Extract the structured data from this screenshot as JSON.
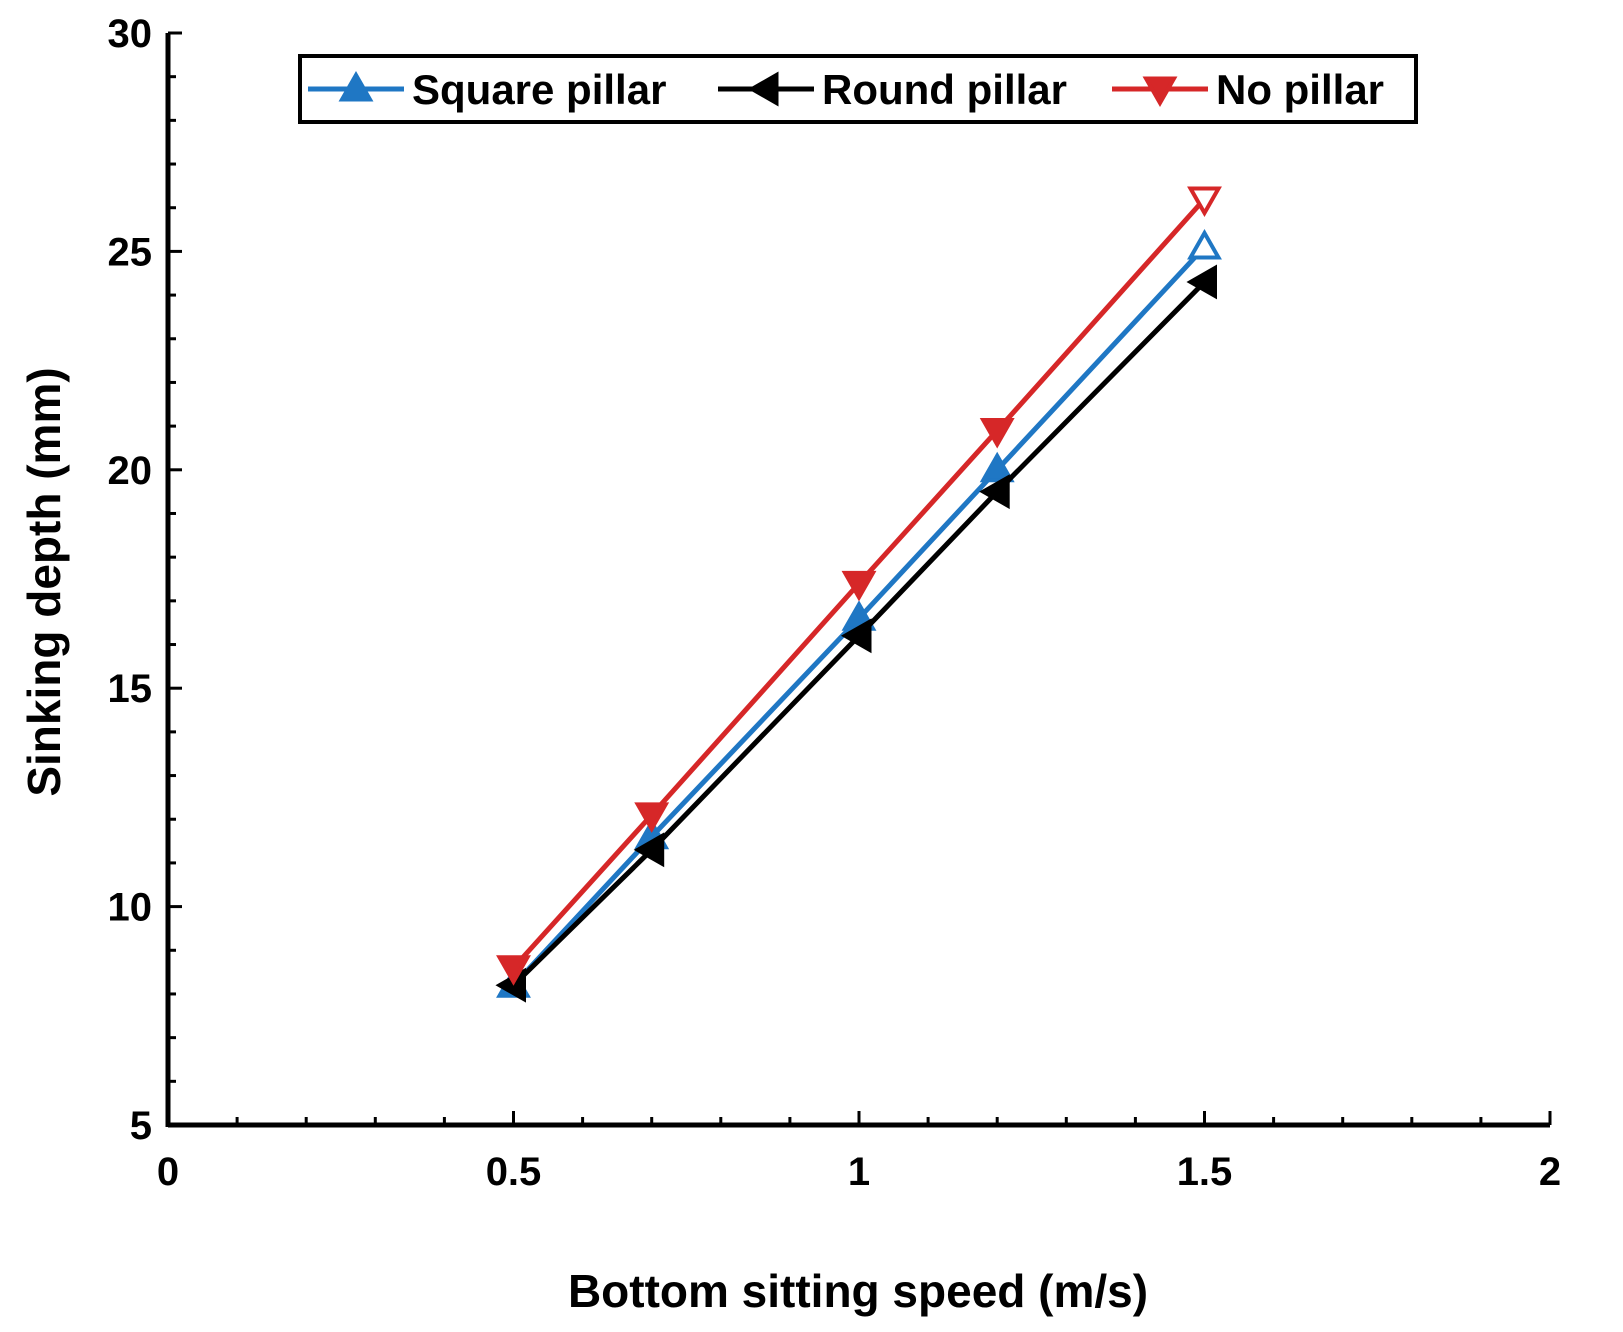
{
  "chart_data": {
    "type": "line",
    "title": "",
    "xlabel": "Bottom sitting speed (m/s)",
    "ylabel": "Sinking depth (mm)",
    "xlim": [
      0,
      2
    ],
    "ylim": [
      5,
      30
    ],
    "xticks": [
      0,
      0.5,
      1,
      1.5,
      2
    ],
    "xtick_labels": [
      "0",
      "0.5",
      "1",
      "1.5",
      "2"
    ],
    "yticks": [
      5,
      10,
      15,
      20,
      25,
      30
    ],
    "ytick_labels": [
      "5",
      "10",
      "15",
      "20",
      "25",
      "30"
    ],
    "grid": false,
    "legend_position": "top",
    "x": [
      0.5,
      0.7,
      1.0,
      1.2,
      1.5
    ],
    "series": [
      {
        "name": "Square pillar",
        "color": "#1f77c4",
        "marker": "triangle-up",
        "values": [
          8.2,
          11.6,
          16.6,
          20.0,
          25.1
        ]
      },
      {
        "name": "Round pillar",
        "color": "#000000",
        "marker": "triangle-left",
        "values": [
          8.2,
          11.3,
          16.2,
          19.5,
          24.3
        ]
      },
      {
        "name": "No pillar",
        "color": "#d62728",
        "marker": "triangle-down",
        "values": [
          8.6,
          12.1,
          17.4,
          20.9,
          26.2
        ]
      }
    ]
  }
}
